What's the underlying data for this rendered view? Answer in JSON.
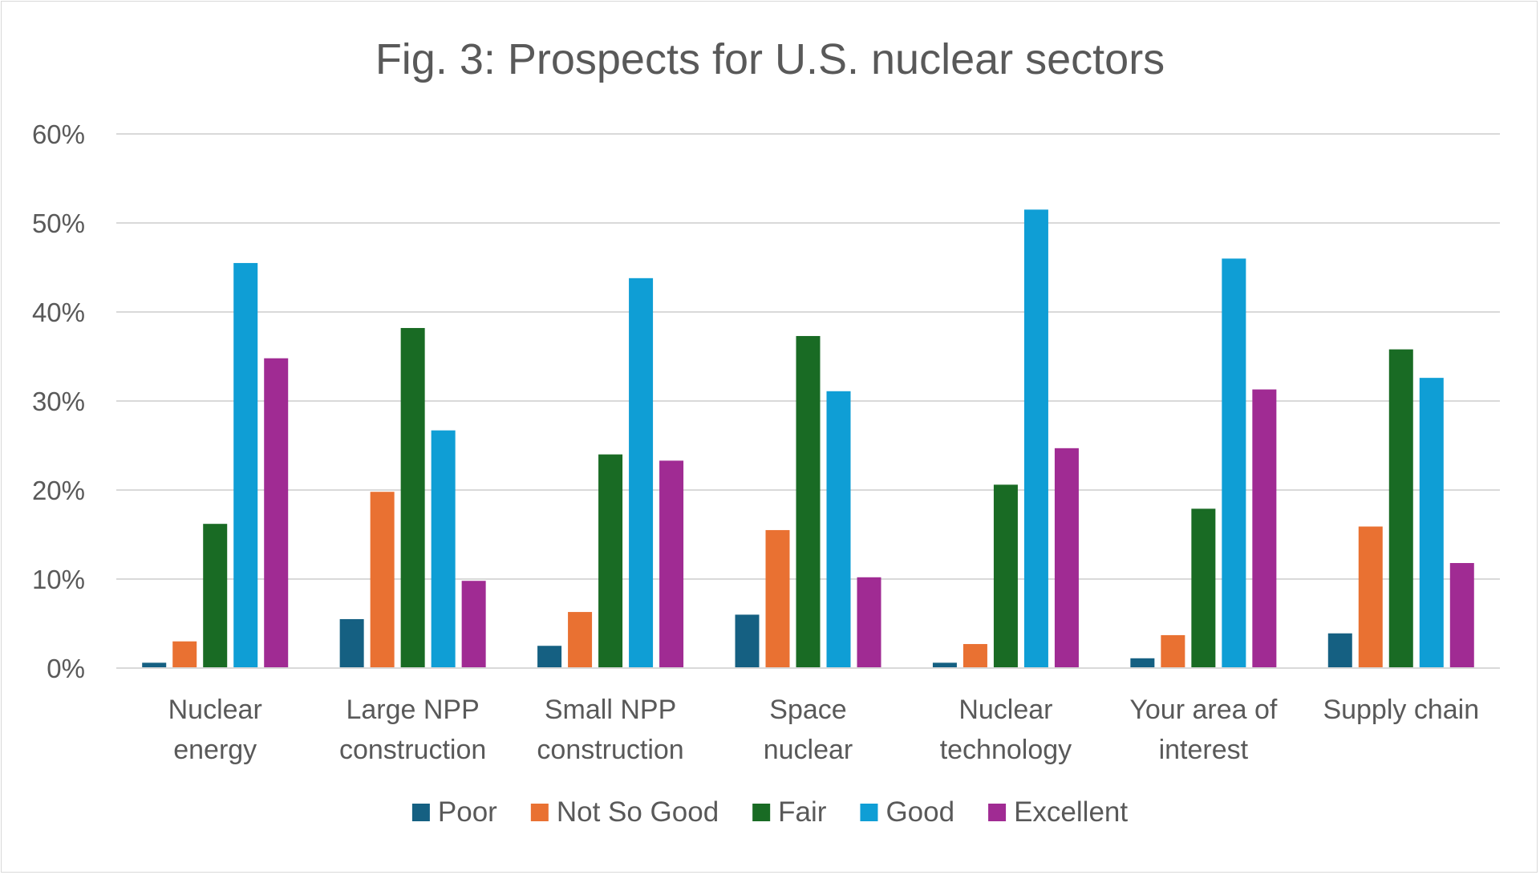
{
  "chart_data": {
    "type": "bar",
    "title": "Fig. 3: Prospects for U.S. nuclear sectors",
    "xlabel": "",
    "ylabel": "",
    "ylim": [
      0,
      0.6
    ],
    "yticks": [
      {
        "value": 0,
        "label": "0%"
      },
      {
        "value": 0.1,
        "label": "10%"
      },
      {
        "value": 0.2,
        "label": "20%"
      },
      {
        "value": 0.3,
        "label": "30%"
      },
      {
        "value": 0.4,
        "label": "40%"
      },
      {
        "value": 0.5,
        "label": "50%"
      },
      {
        "value": 0.6,
        "label": "60%"
      }
    ],
    "grid": true,
    "legend_position": "bottom",
    "categories": [
      [
        "Nuclear",
        "energy"
      ],
      [
        "Large NPP",
        "construction"
      ],
      [
        "Small NPP",
        "construction"
      ],
      [
        "Space",
        "nuclear"
      ],
      [
        "Nuclear",
        "technology"
      ],
      [
        "Your area of",
        "interest"
      ],
      [
        "Supply chain"
      ]
    ],
    "series": [
      {
        "name": "Poor",
        "color": "#156082",
        "values": [
          0.006,
          0.055,
          0.025,
          0.06,
          0.006,
          0.011,
          0.039
        ]
      },
      {
        "name": "Not So Good",
        "color": "#E97132",
        "values": [
          0.03,
          0.198,
          0.063,
          0.155,
          0.027,
          0.037,
          0.159
        ]
      },
      {
        "name": "Fair",
        "color": "#196B24",
        "values": [
          0.162,
          0.382,
          0.24,
          0.373,
          0.206,
          0.179,
          0.358
        ]
      },
      {
        "name": "Good",
        "color": "#0F9ED5",
        "values": [
          0.455,
          0.267,
          0.438,
          0.311,
          0.515,
          0.46,
          0.326
        ]
      },
      {
        "name": "Excellent",
        "color": "#A02B93",
        "values": [
          0.348,
          0.098,
          0.233,
          0.102,
          0.247,
          0.313,
          0.118
        ]
      }
    ]
  }
}
